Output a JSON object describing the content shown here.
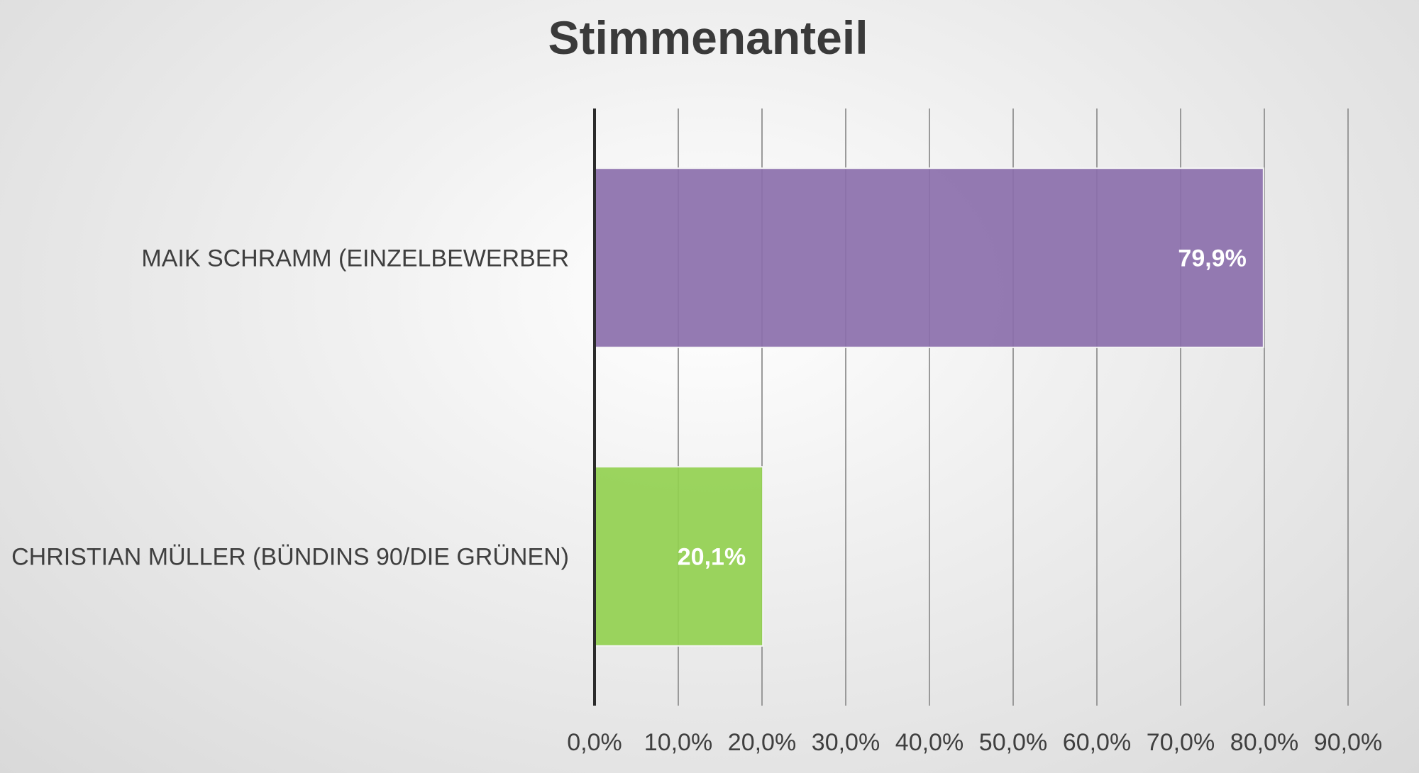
{
  "chart_data": {
    "type": "bar",
    "orientation": "horizontal",
    "title": "Stimmenanteil",
    "categories": [
      "MAIK SCHRAMM (EINZELBEWERBER",
      "CHRISTIAN MÜLLER (BÜNDINS 90/DIE GRÜNEN)"
    ],
    "values": [
      79.9,
      20.1
    ],
    "data_labels": [
      "79,9%",
      "20,1%"
    ],
    "bar_colors": [
      "#8b6fab",
      "#92d050"
    ],
    "xlim": [
      0,
      90
    ],
    "x_ticks": [
      0,
      10,
      20,
      30,
      40,
      50,
      60,
      70,
      80,
      90
    ],
    "x_tick_labels": [
      "0,0%",
      "10,0%",
      "20,0%",
      "30,0%",
      "40,0%",
      "50,0%",
      "60,0%",
      "70,0%",
      "80,0%",
      "90,0%"
    ],
    "xlabel": "",
    "ylabel": "",
    "grid": "vertical",
    "legend": "none"
  }
}
